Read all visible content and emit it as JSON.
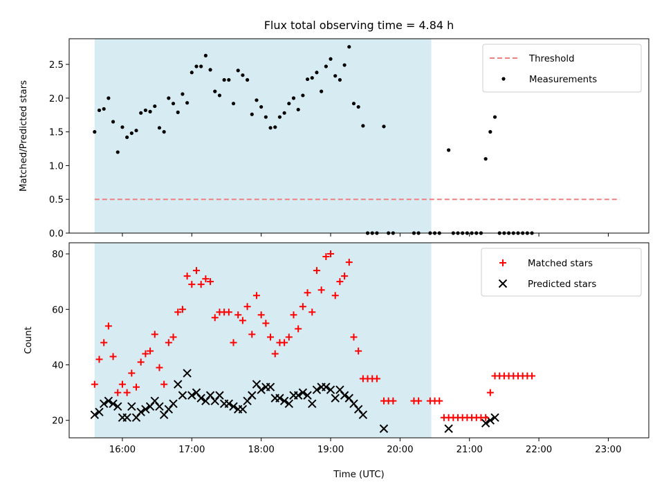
{
  "chart_data": {
    "title": "Flux total observing time = 4.84 h",
    "shaded_region": {
      "start": "15:36",
      "end": "20:27",
      "color": "#add8e6"
    },
    "x_axis": {
      "label": "Time (UTC)",
      "range": [
        "15:14",
        "23:35"
      ],
      "ticks": [
        "16:00",
        "17:00",
        "18:00",
        "19:00",
        "20:00",
        "21:00",
        "22:00",
        "23:00"
      ]
    },
    "panels": [
      {
        "type": "scatter",
        "ylabel": "Matched/Predicted stars",
        "ylim": [
          0,
          2.88
        ],
        "yticks": [
          0.0,
          0.5,
          1.0,
          1.5,
          2.0,
          2.5
        ],
        "ytick_labels": [
          "0.0",
          "0.5",
          "1.0",
          "1.5",
          "2.0",
          "2.5"
        ],
        "legend": {
          "position": "upper right",
          "entries": [
            "Threshold",
            "Measurements"
          ]
        },
        "threshold": {
          "name": "Threshold",
          "value": 0.5,
          "x_start": "15:36",
          "x_end": "23:10",
          "color": "#f08080"
        },
        "measurements": {
          "name": "Measurements",
          "color": "#000000",
          "points": [
            [
              "15:36",
              1.5
            ],
            [
              "15:40",
              1.82
            ],
            [
              "15:44",
              1.84
            ],
            [
              "15:48",
              2.0
            ],
            [
              "15:52",
              1.65
            ],
            [
              "15:56",
              1.2
            ],
            [
              "16:00",
              1.57
            ],
            [
              "16:04",
              1.42
            ],
            [
              "16:08",
              1.48
            ],
            [
              "16:12",
              1.52
            ],
            [
              "16:16",
              1.78
            ],
            [
              "16:20",
              1.82
            ],
            [
              "16:24",
              1.8
            ],
            [
              "16:28",
              1.88
            ],
            [
              "16:32",
              1.56
            ],
            [
              "16:36",
              1.5
            ],
            [
              "16:40",
              2.0
            ],
            [
              "16:44",
              1.92
            ],
            [
              "16:48",
              1.79
            ],
            [
              "16:52",
              2.06
            ],
            [
              "16:56",
              1.93
            ],
            [
              "17:00",
              2.38
            ],
            [
              "17:04",
              2.47
            ],
            [
              "17:08",
              2.47
            ],
            [
              "17:12",
              2.63
            ],
            [
              "17:16",
              2.42
            ],
            [
              "17:20",
              2.1
            ],
            [
              "17:24",
              2.04
            ],
            [
              "17:28",
              2.27
            ],
            [
              "17:32",
              2.27
            ],
            [
              "17:36",
              1.92
            ],
            [
              "17:40",
              2.41
            ],
            [
              "17:44",
              2.34
            ],
            [
              "17:48",
              2.27
            ],
            [
              "17:52",
              1.76
            ],
            [
              "17:56",
              1.97
            ],
            [
              "18:00",
              1.87
            ],
            [
              "18:04",
              1.72
            ],
            [
              "18:08",
              1.56
            ],
            [
              "18:12",
              1.57
            ],
            [
              "18:16",
              1.72
            ],
            [
              "18:20",
              1.78
            ],
            [
              "18:24",
              1.92
            ],
            [
              "18:28",
              2.0
            ],
            [
              "18:32",
              1.83
            ],
            [
              "18:36",
              2.04
            ],
            [
              "18:40",
              2.28
            ],
            [
              "18:44",
              2.3
            ],
            [
              "18:48",
              2.38
            ],
            [
              "18:52",
              2.1
            ],
            [
              "18:56",
              2.47
            ],
            [
              "19:00",
              2.58
            ],
            [
              "19:04",
              2.33
            ],
            [
              "19:08",
              2.27
            ],
            [
              "19:12",
              2.49
            ],
            [
              "19:16",
              2.76
            ],
            [
              "19:20",
              1.92
            ],
            [
              "19:24",
              1.87
            ],
            [
              "19:28",
              1.59
            ],
            [
              "19:32",
              0.0
            ],
            [
              "19:36",
              0.0
            ],
            [
              "19:40",
              0.0
            ],
            [
              "19:46",
              1.58
            ],
            [
              "19:50",
              0.0
            ],
            [
              "19:54",
              0.0
            ],
            [
              "20:12",
              0.0
            ],
            [
              "20:16",
              0.0
            ],
            [
              "20:26",
              0.0
            ],
            [
              "20:30",
              0.0
            ],
            [
              "20:34",
              0.0
            ],
            [
              "20:42",
              1.23
            ],
            [
              "20:46",
              0.0
            ],
            [
              "20:50",
              0.0
            ],
            [
              "20:54",
              0.0
            ],
            [
              "20:58",
              0.0
            ],
            [
              "21:02",
              0.0
            ],
            [
              "21:06",
              0.0
            ],
            [
              "21:10",
              0.0
            ],
            [
              "21:14",
              1.1
            ],
            [
              "21:18",
              1.5
            ],
            [
              "21:22",
              1.72
            ],
            [
              "21:26",
              0.0
            ],
            [
              "21:30",
              0.0
            ],
            [
              "21:34",
              0.0
            ],
            [
              "21:38",
              0.0
            ],
            [
              "21:42",
              0.0
            ],
            [
              "21:46",
              0.0
            ],
            [
              "21:50",
              0.0
            ],
            [
              "21:54",
              0.0
            ]
          ]
        }
      },
      {
        "type": "scatter",
        "ylabel": "Count",
        "ylim": [
          13.7,
          84
        ],
        "yticks": [
          20,
          40,
          60,
          80
        ],
        "ytick_labels": [
          "20",
          "40",
          "60",
          "80"
        ],
        "legend": {
          "position": "upper right",
          "entries": [
            "Matched stars",
            "Predicted stars"
          ]
        },
        "matched": {
          "name": "Matched stars",
          "color": "#ff0000",
          "points": [
            [
              "15:36",
              33
            ],
            [
              "15:40",
              42
            ],
            [
              "15:44",
              48
            ],
            [
              "15:48",
              54
            ],
            [
              "15:52",
              43
            ],
            [
              "15:56",
              30
            ],
            [
              "16:00",
              33
            ],
            [
              "16:04",
              30
            ],
            [
              "16:08",
              37
            ],
            [
              "16:12",
              32
            ],
            [
              "16:16",
              41
            ],
            [
              "16:20",
              44
            ],
            [
              "16:24",
              45
            ],
            [
              "16:28",
              51
            ],
            [
              "16:32",
              39
            ],
            [
              "16:36",
              33
            ],
            [
              "16:40",
              48
            ],
            [
              "16:44",
              50
            ],
            [
              "16:48",
              59
            ],
            [
              "16:52",
              60
            ],
            [
              "16:56",
              72
            ],
            [
              "17:00",
              69
            ],
            [
              "17:04",
              74
            ],
            [
              "17:08",
              69
            ],
            [
              "17:12",
              71
            ],
            [
              "17:16",
              70
            ],
            [
              "17:20",
              57
            ],
            [
              "17:24",
              59
            ],
            [
              "17:28",
              59
            ],
            [
              "17:32",
              59
            ],
            [
              "17:36",
              48
            ],
            [
              "17:40",
              58
            ],
            [
              "17:44",
              56
            ],
            [
              "17:48",
              61
            ],
            [
              "17:52",
              51
            ],
            [
              "17:56",
              65
            ],
            [
              "18:00",
              58
            ],
            [
              "18:04",
              55
            ],
            [
              "18:08",
              50
            ],
            [
              "18:12",
              44
            ],
            [
              "18:16",
              48
            ],
            [
              "18:20",
              48
            ],
            [
              "18:24",
              50
            ],
            [
              "18:28",
              58
            ],
            [
              "18:32",
              53
            ],
            [
              "18:36",
              61
            ],
            [
              "18:40",
              66
            ],
            [
              "18:44",
              59
            ],
            [
              "18:48",
              74
            ],
            [
              "18:52",
              67
            ],
            [
              "18:56",
              79
            ],
            [
              "19:00",
              80
            ],
            [
              "19:04",
              65
            ],
            [
              "19:08",
              70
            ],
            [
              "19:12",
              72
            ],
            [
              "19:16",
              77
            ],
            [
              "19:20",
              50
            ],
            [
              "19:24",
              45
            ],
            [
              "19:28",
              35
            ],
            [
              "19:32",
              35
            ],
            [
              "19:36",
              35
            ],
            [
              "19:40",
              35
            ],
            [
              "19:46",
              27
            ],
            [
              "19:50",
              27
            ],
            [
              "19:54",
              27
            ],
            [
              "20:12",
              27
            ],
            [
              "20:16",
              27
            ],
            [
              "20:26",
              27
            ],
            [
              "20:30",
              27
            ],
            [
              "20:34",
              27
            ],
            [
              "20:38",
              21
            ],
            [
              "20:42",
              21
            ],
            [
              "20:46",
              21
            ],
            [
              "20:50",
              21
            ],
            [
              "20:54",
              21
            ],
            [
              "20:58",
              21
            ],
            [
              "21:02",
              21
            ],
            [
              "21:06",
              21
            ],
            [
              "21:10",
              21
            ],
            [
              "21:14",
              21
            ],
            [
              "21:18",
              30
            ],
            [
              "21:22",
              36
            ],
            [
              "21:26",
              36
            ],
            [
              "21:30",
              36
            ],
            [
              "21:34",
              36
            ],
            [
              "21:38",
              36
            ],
            [
              "21:42",
              36
            ],
            [
              "21:46",
              36
            ],
            [
              "21:50",
              36
            ],
            [
              "21:54",
              36
            ]
          ]
        },
        "predicted": {
          "name": "Predicted stars",
          "color": "#000000",
          "points": [
            [
              "15:36",
              22
            ],
            [
              "15:40",
              23
            ],
            [
              "15:44",
              26
            ],
            [
              "15:48",
              27
            ],
            [
              "15:52",
              26
            ],
            [
              "15:56",
              25
            ],
            [
              "16:00",
              21
            ],
            [
              "16:04",
              21
            ],
            [
              "16:08",
              25
            ],
            [
              "16:12",
              21
            ],
            [
              "16:16",
              23
            ],
            [
              "16:20",
              24
            ],
            [
              "16:24",
              25
            ],
            [
              "16:28",
              27
            ],
            [
              "16:32",
              25
            ],
            [
              "16:36",
              22
            ],
            [
              "16:40",
              24
            ],
            [
              "16:44",
              26
            ],
            [
              "16:48",
              33
            ],
            [
              "16:52",
              29
            ],
            [
              "16:56",
              37
            ],
            [
              "17:00",
              29
            ],
            [
              "17:04",
              30
            ],
            [
              "17:08",
              28
            ],
            [
              "17:12",
              27
            ],
            [
              "17:16",
              29
            ],
            [
              "17:20",
              27
            ],
            [
              "17:24",
              29
            ],
            [
              "17:28",
              26
            ],
            [
              "17:32",
              26
            ],
            [
              "17:36",
              25
            ],
            [
              "17:40",
              24
            ],
            [
              "17:44",
              24
            ],
            [
              "17:48",
              27
            ],
            [
              "17:52",
              29
            ],
            [
              "17:56",
              33
            ],
            [
              "18:00",
              31
            ],
            [
              "18:04",
              32
            ],
            [
              "18:08",
              32
            ],
            [
              "18:12",
              28
            ],
            [
              "18:16",
              28
            ],
            [
              "18:20",
              27
            ],
            [
              "18:24",
              26
            ],
            [
              "18:28",
              29
            ],
            [
              "18:32",
              29
            ],
            [
              "18:36",
              30
            ],
            [
              "18:40",
              29
            ],
            [
              "18:44",
              26
            ],
            [
              "18:48",
              31
            ],
            [
              "18:52",
              32
            ],
            [
              "18:56",
              32
            ],
            [
              "19:00",
              31
            ],
            [
              "19:04",
              28
            ],
            [
              "19:08",
              31
            ],
            [
              "19:12",
              29
            ],
            [
              "19:16",
              28
            ],
            [
              "19:20",
              26
            ],
            [
              "19:24",
              24
            ],
            [
              "19:28",
              22
            ],
            [
              "19:46",
              17
            ],
            [
              "20:42",
              17
            ],
            [
              "21:14",
              19
            ],
            [
              "21:18",
              20
            ],
            [
              "21:22",
              21
            ]
          ]
        }
      }
    ]
  }
}
